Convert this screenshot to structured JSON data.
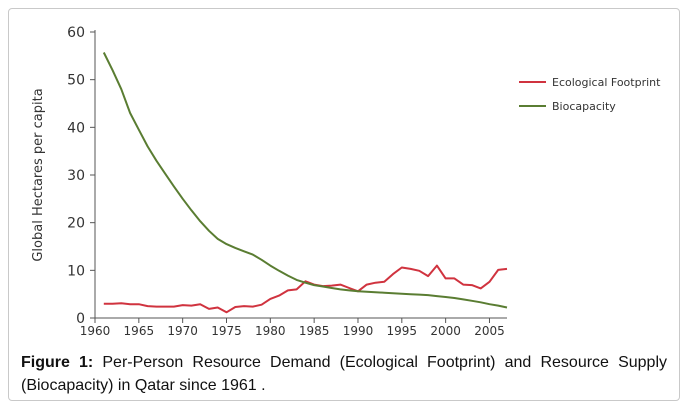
{
  "chart_data": {
    "type": "line",
    "title": "",
    "xlabel": "",
    "ylabel": "Global Hectares per capita",
    "xlim": [
      1960,
      2007
    ],
    "ylim": [
      0,
      60
    ],
    "x_ticks": [
      1960,
      1965,
      1970,
      1975,
      1980,
      1985,
      1990,
      1995,
      2000,
      2005
    ],
    "y_ticks": [
      0,
      10,
      20,
      30,
      40,
      50,
      60
    ],
    "grid": false,
    "legend_position": "right",
    "series": [
      {
        "name": "Ecological Footprint",
        "color": "#d0333f",
        "points": [
          [
            1961,
            3.0
          ],
          [
            1962,
            3.0
          ],
          [
            1963,
            3.1
          ],
          [
            1964,
            2.9
          ],
          [
            1965,
            2.9
          ],
          [
            1966,
            2.5
          ],
          [
            1967,
            2.4
          ],
          [
            1968,
            2.4
          ],
          [
            1969,
            2.4
          ],
          [
            1970,
            2.7
          ],
          [
            1971,
            2.6
          ],
          [
            1972,
            2.9
          ],
          [
            1973,
            1.9
          ],
          [
            1974,
            2.2
          ],
          [
            1975,
            1.2
          ],
          [
            1976,
            2.3
          ],
          [
            1977,
            2.5
          ],
          [
            1978,
            2.4
          ],
          [
            1979,
            2.8
          ],
          [
            1980,
            4.0
          ],
          [
            1981,
            4.7
          ],
          [
            1982,
            5.8
          ],
          [
            1983,
            6.0
          ],
          [
            1984,
            7.7
          ],
          [
            1985,
            7.0
          ],
          [
            1986,
            6.7
          ],
          [
            1987,
            6.8
          ],
          [
            1988,
            7.0
          ],
          [
            1989,
            6.3
          ],
          [
            1990,
            5.6
          ],
          [
            1991,
            7.0
          ],
          [
            1992,
            7.4
          ],
          [
            1993,
            7.6
          ],
          [
            1994,
            9.2
          ],
          [
            1995,
            10.6
          ],
          [
            1996,
            10.3
          ],
          [
            1997,
            9.9
          ],
          [
            1998,
            8.8
          ],
          [
            1999,
            11.0
          ],
          [
            2000,
            8.3
          ],
          [
            2001,
            8.3
          ],
          [
            2002,
            7.0
          ],
          [
            2003,
            6.9
          ],
          [
            2004,
            6.2
          ],
          [
            2005,
            7.6
          ],
          [
            2006,
            10.1
          ],
          [
            2007,
            10.3
          ]
        ]
      },
      {
        "name": "Biocapacity",
        "color": "#5a7d32",
        "points": [
          [
            1961,
            55.7
          ],
          [
            1962,
            52.0
          ],
          [
            1963,
            48.0
          ],
          [
            1964,
            43.0
          ],
          [
            1965,
            39.5
          ],
          [
            1966,
            36.0
          ],
          [
            1967,
            33.0
          ],
          [
            1968,
            30.3
          ],
          [
            1969,
            27.6
          ],
          [
            1970,
            25.0
          ],
          [
            1971,
            22.6
          ],
          [
            1972,
            20.3
          ],
          [
            1973,
            18.3
          ],
          [
            1974,
            16.6
          ],
          [
            1975,
            15.5
          ],
          [
            1976,
            14.7
          ],
          [
            1977,
            14.0
          ],
          [
            1978,
            13.3
          ],
          [
            1979,
            12.2
          ],
          [
            1980,
            11.0
          ],
          [
            1981,
            9.9
          ],
          [
            1982,
            8.9
          ],
          [
            1983,
            8.0
          ],
          [
            1984,
            7.4
          ],
          [
            1985,
            6.9
          ],
          [
            1986,
            6.6
          ],
          [
            1987,
            6.3
          ],
          [
            1988,
            6.0
          ],
          [
            1989,
            5.8
          ],
          [
            1990,
            5.6
          ],
          [
            1991,
            5.5
          ],
          [
            1992,
            5.4
          ],
          [
            1993,
            5.3
          ],
          [
            1994,
            5.2
          ],
          [
            1995,
            5.1
          ],
          [
            1996,
            5.0
          ],
          [
            1997,
            4.9
          ],
          [
            1998,
            4.8
          ],
          [
            1999,
            4.6
          ],
          [
            2000,
            4.4
          ],
          [
            2001,
            4.2
          ],
          [
            2002,
            3.9
          ],
          [
            2003,
            3.6
          ],
          [
            2004,
            3.3
          ],
          [
            2005,
            2.9
          ],
          [
            2006,
            2.6
          ],
          [
            2007,
            2.2
          ]
        ]
      }
    ]
  },
  "caption": {
    "label": "Figure 1:",
    "text": " Per-Person Resource Demand (Ecological Footprint) and Resource Supply (Biocapacity) in Qatar since 1961 ."
  }
}
